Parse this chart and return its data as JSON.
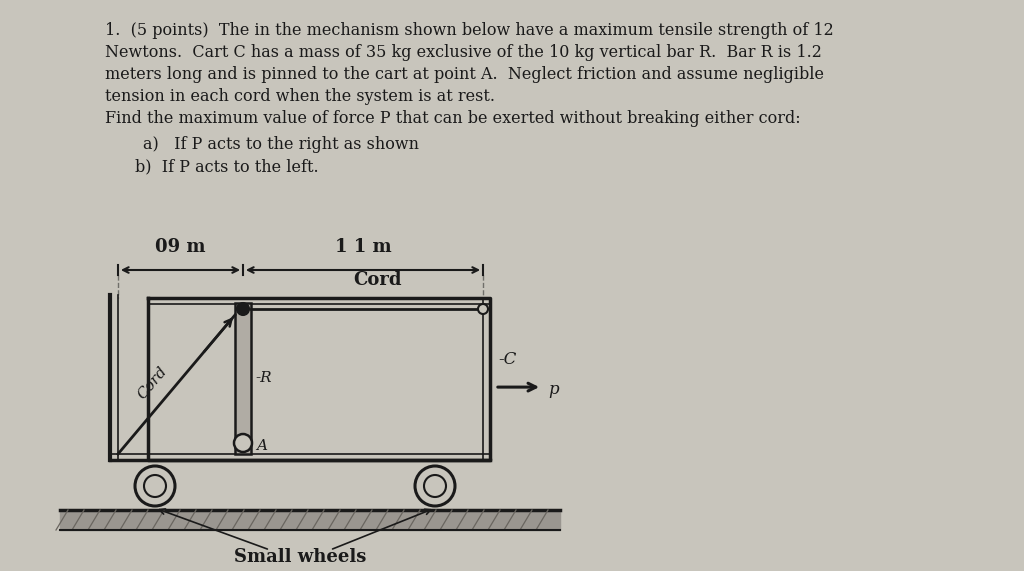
{
  "background_color": "#c8c5bc",
  "text_color": "#1a1a1a",
  "title_lines": [
    "1.  (5 points)  The in the mechanism shown below have a maximum tensile strength of 12",
    "Newtons.  Cart C has a mass of 35 kg exclusive of the 10 kg vertical bar R.  Bar R is 1.2",
    "meters long and is pinned to the cart at point A.  Neglect friction and assume negligible",
    "tension in each cord when the system is at rest.",
    "Find the maximum value of force P that can be exerted without breaking either cord:"
  ],
  "bullet_a": "a)   If P acts to the right as shown",
  "bullet_b": "b)  If P acts to the left.",
  "dim_09": "09 m",
  "dim_11": "1 1 m",
  "label_cord_horiz": "Cord",
  "label_cord_diag": "Cord",
  "label_R": "R",
  "label_A": "A",
  "label_C": "C",
  "label_P": "p",
  "label_wheels": "Small wheels"
}
